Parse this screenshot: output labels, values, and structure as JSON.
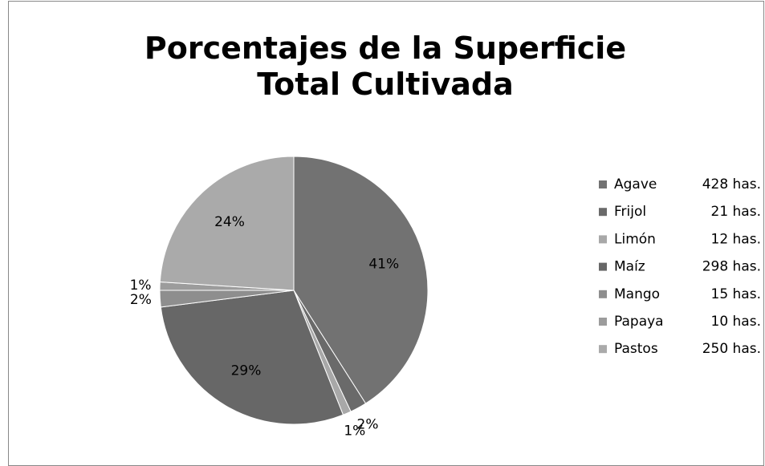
{
  "chart_data": {
    "type": "pie",
    "title": "Porcentajes de la Superficie Total Cultivada",
    "categories": [
      "Agave",
      "Frijol",
      "Limón",
      "Maíz",
      "Mango",
      "Papaya",
      "Pastos"
    ],
    "values": [
      41,
      2,
      1,
      29,
      2,
      1,
      24
    ],
    "value_labels": [
      "41%",
      "2%",
      "1%",
      "29%",
      "2%",
      "1%",
      "24%"
    ],
    "legend_values": [
      "428 has.",
      "21 has.",
      "12 has.",
      "298 has.",
      "15 has.",
      "10 has.",
      "250 has."
    ],
    "colors": [
      "#727272",
      "#6a6a6a",
      "#a8a8a8",
      "#676767",
      "#8e8e8e",
      "#9c9c9c",
      "#aaaaaa"
    ],
    "legend": "right"
  }
}
